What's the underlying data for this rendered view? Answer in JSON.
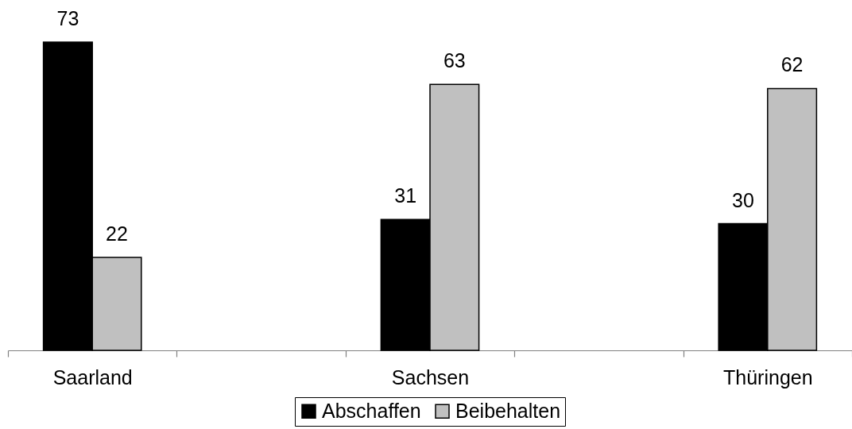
{
  "chart_data": {
    "type": "bar",
    "categories": [
      "Saarland",
      null,
      "Sachsen",
      null,
      "Thüringen"
    ],
    "series": [
      {
        "name": "Abschaffen",
        "color": "#000000",
        "values": [
          73,
          null,
          31,
          null,
          30
        ]
      },
      {
        "name": "Beibehalten",
        "color": "#c0c0c0",
        "values": [
          22,
          null,
          63,
          null,
          62
        ]
      }
    ],
    "data_labels": true,
    "legend": "bottom"
  }
}
